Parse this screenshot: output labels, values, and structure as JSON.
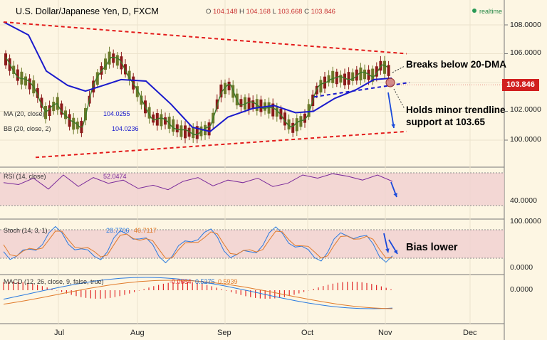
{
  "header": {
    "title": "U.S. Dollar/Japanese Yen, D, FXCM",
    "ohlc": [
      {
        "label": "O",
        "value": "104.148"
      },
      {
        "label": "H",
        "value": "104.168"
      },
      {
        "label": "L",
        "value": "103.668"
      },
      {
        "label": "C",
        "value": "103.846"
      }
    ],
    "status": "realtime"
  },
  "indicators": {
    "ma_20": {
      "label": "MA (20, close)",
      "value": "104.0255"
    },
    "bb": {
      "label": "BB (20, close, 2)",
      "value": "104.0236"
    },
    "rsi": {
      "label": "RSI (14, close)",
      "value": "52.0474"
    },
    "stoch": {
      "label": "Stoch (14, 3, 1)",
      "k": "28.7706",
      "d": "46.7117"
    },
    "macd": {
      "label": "MACD (12, 26, close, 9, false, true)",
      "hist": "-0.0664",
      "macd": "0.5275",
      "signal": "0.5939"
    }
  },
  "annotations": {
    "breaks": "Breaks below 20-DMA",
    "holds_1": "Holds minor trendline",
    "holds_2": "support at 103.65",
    "bias": "Bias lower"
  },
  "last_price": "103.846",
  "axes": {
    "price_ticks": [
      "108.0000",
      "106.0000",
      "104.0000",
      "102.0000",
      "100.0000"
    ],
    "rsi_ticks": [
      "40.0000"
    ],
    "stoch_ticks": [
      "100.0000",
      "0.0000"
    ],
    "macd_ticks": [
      "0.0000"
    ],
    "months": [
      "Jul",
      "Aug",
      "Sep",
      "Oct",
      "Nov",
      "Dec"
    ]
  },
  "colors": {
    "background": "#fdf6e3",
    "up_candle": "#6b7a2a",
    "down_candle": "#8b1a1a",
    "ma20": "#1a1acc",
    "ma5": "#3a7a2a",
    "trendline": "#e31a1a",
    "rsi": "#7a2a9a",
    "stoch_k": "#2a7ae0",
    "stoch_d": "#e07a2a",
    "macd_hist": "#e02a2a",
    "band_fill": "#f0d0d0"
  },
  "chart_data": {
    "type": "candlestick",
    "symbol": "USD/JPY",
    "timeframe": "D",
    "price_range": [
      98.6,
      109.2
    ],
    "price_path": [
      [
        0,
        105.8
      ],
      [
        20,
        104.5
      ],
      [
        45,
        103.6
      ],
      [
        60,
        101.8
      ],
      [
        75,
        102.6
      ],
      [
        95,
        101.2
      ],
      [
        110,
        100.9
      ],
      [
        125,
        103.6
      ],
      [
        138,
        104.9
      ],
      [
        150,
        105.8
      ],
      [
        165,
        105.4
      ],
      [
        180,
        104.2
      ],
      [
        195,
        102.6
      ],
      [
        210,
        101.5
      ],
      [
        230,
        101.3
      ],
      [
        250,
        100.6
      ],
      [
        270,
        100.5
      ],
      [
        290,
        100.8
      ],
      [
        305,
        103.4
      ],
      [
        318,
        103.8
      ],
      [
        330,
        102.6
      ],
      [
        350,
        102.5
      ],
      [
        370,
        102.3
      ],
      [
        390,
        101.8
      ],
      [
        405,
        100.8
      ],
      [
        425,
        101.6
      ],
      [
        440,
        103.5
      ],
      [
        460,
        104.4
      ],
      [
        480,
        104.2
      ],
      [
        500,
        104.6
      ],
      [
        520,
        104.5
      ],
      [
        530,
        105.2
      ],
      [
        540,
        104.9
      ],
      [
        548,
        104.0
      ]
    ],
    "ma20_path": [
      [
        0,
        108.2
      ],
      [
        35,
        107.3
      ],
      [
        60,
        104.8
      ],
      [
        90,
        103.8
      ],
      [
        115,
        103.4
      ],
      [
        140,
        103.8
      ],
      [
        165,
        104.2
      ],
      [
        200,
        104.1
      ],
      [
        235,
        102.5
      ],
      [
        265,
        100.9
      ],
      [
        290,
        100.6
      ],
      [
        315,
        101.6
      ],
      [
        350,
        102.2
      ],
      [
        380,
        102.4
      ],
      [
        410,
        101.9
      ],
      [
        435,
        102.0
      ],
      [
        465,
        102.9
      ],
      [
        495,
        103.5
      ],
      [
        520,
        104.2
      ],
      [
        545,
        104.3
      ]
    ],
    "trendlines": {
      "upper_resistance": {
        "from": [
          0,
          108.2
        ],
        "to": [
          566,
          106.0
        ]
      },
      "lower_support": {
        "from": [
          45,
          98.8
        ],
        "to": [
          566,
          100.6
        ]
      },
      "minor_trendline": {
        "from": [
          436,
          103.0
        ],
        "to": [
          570,
          104.0
        ]
      }
    },
    "rsi": {
      "value": 52.0474,
      "path": [
        48,
        45,
        55,
        38,
        60,
        42,
        56,
        47,
        52,
        39,
        44,
        37,
        50,
        56,
        43,
        52,
        48,
        55,
        42,
        47,
        60,
        55,
        62,
        58,
        52,
        60,
        50
      ]
    },
    "stoch": {
      "k": 28.7706,
      "d": 46.7117
    },
    "macd": {
      "hist": -0.0664,
      "macd": 0.5275,
      "signal": 0.5939
    }
  }
}
